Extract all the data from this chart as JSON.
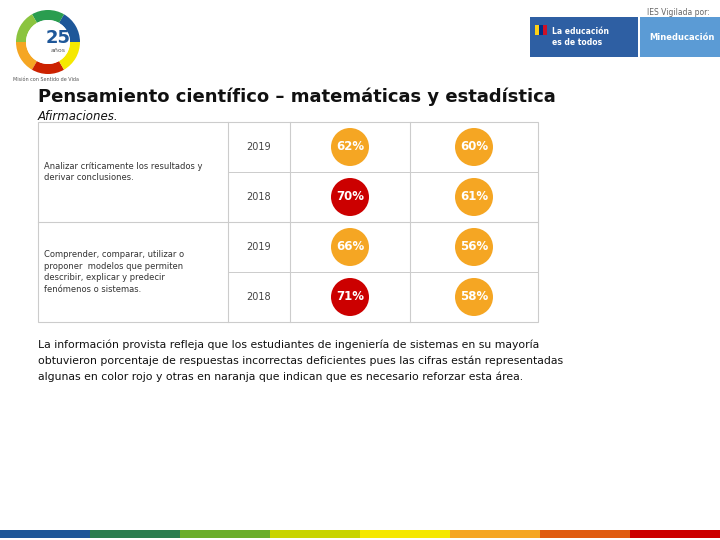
{
  "title": "Pensamiento científico – matemáticas y estadística",
  "subtitle": "Afirmaciones.",
  "bg_color": "#ffffff",
  "table": {
    "rows": [
      {
        "label": "Analizar críticamente los resultados y\nderivar conclusiones.",
        "years": [
          {
            "year": "2019",
            "val1": "62%",
            "col1": "#F5A623",
            "val2": "60%",
            "col2": "#F5A623"
          },
          {
            "year": "2018",
            "val1": "70%",
            "col1": "#CC0000",
            "val2": "61%",
            "col2": "#F5A623"
          }
        ]
      },
      {
        "label": "Comprender, comparar, utilizar o\nproponer  modelos que permiten\ndescribir, explicar y predecir\nfenómenos o sistemas.",
        "years": [
          {
            "year": "2019",
            "val1": "66%",
            "col1": "#F5A623",
            "val2": "56%",
            "col2": "#F5A623"
          },
          {
            "year": "2018",
            "val1": "71%",
            "col1": "#CC0000",
            "val2": "58%",
            "col2": "#F5A623"
          }
        ]
      }
    ]
  },
  "footer_text": "La información provista refleja que los estudiantes de ingeniería de sistemas en su mayoría\nobtuvieron porcentaje de respuestas incorrectas deficientes pues las cifras están representadas\nalgunas en color rojo y otras en naranja que indican que es necesario reforzar esta área.",
  "header_right_text1": "IES Vigilada por:",
  "header_right_label1": "La educación\nes de todos",
  "header_right_label2": "Mineducación",
  "col1_dark_blue": "#2E5FA3",
  "col2_light_blue": "#5B9BD5",
  "rainbow_colors": [
    "#1E5799",
    "#2A7D4F",
    "#6BAD2A",
    "#C8D400",
    "#F5E800",
    "#F5A623",
    "#E05C10",
    "#CC0000"
  ],
  "table_border_color": "#CCCCCC",
  "label_font_size": 6.0,
  "circle_font_size": 8.5,
  "year_font_size": 7.0,
  "logo_ring_colors": [
    "#1E5799",
    "#2A9D4F",
    "#8BC43F",
    "#F5A623",
    "#CC2200",
    "#F5E800"
  ]
}
